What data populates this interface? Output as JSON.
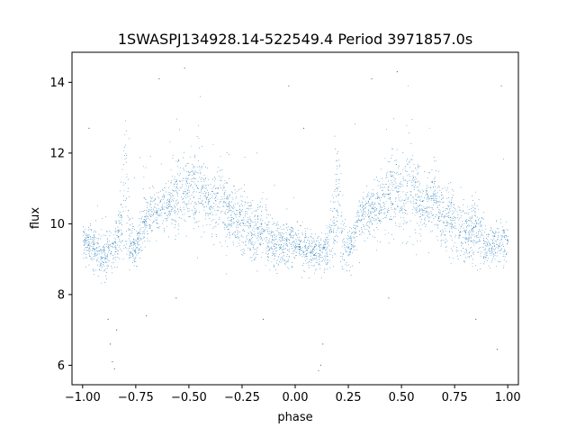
{
  "chart_data": {
    "type": "scatter",
    "title": "1SWASPJ134928.14-522549.4 Period 3971857.0s",
    "xlabel": "phase",
    "ylabel": "flux",
    "xlim": [
      -1.05,
      1.05
    ],
    "ylim": [
      5.45,
      14.85
    ],
    "xticks": [
      -1.0,
      -0.75,
      -0.5,
      -0.25,
      0.0,
      0.25,
      0.5,
      0.75,
      1.0
    ],
    "xtick_labels": [
      "−1.00",
      "−0.75",
      "−0.50",
      "−0.25",
      "0.00",
      "0.25",
      "0.50",
      "0.75",
      "1.00"
    ],
    "yticks": [
      6,
      8,
      10,
      12,
      14
    ],
    "ytick_labels": [
      "6",
      "8",
      "10",
      "12",
      "14"
    ],
    "grid": false,
    "marker_color": "#1f77b4",
    "series": [
      {
        "profile": [
          {
            "x": 0.0,
            "y": 9.5,
            "spread": 0.45
          },
          {
            "x": 0.05,
            "y": 9.3,
            "spread": 0.5
          },
          {
            "x": 0.1,
            "y": 9.1,
            "spread": 0.55
          },
          {
            "x": 0.15,
            "y": 9.3,
            "spread": 0.55
          },
          {
            "x": 0.18,
            "y": 10.0,
            "spread": 0.9
          },
          {
            "x": 0.2,
            "y": 11.0,
            "spread": 1.8
          },
          {
            "x": 0.22,
            "y": 9.5,
            "spread": 0.7
          },
          {
            "x": 0.25,
            "y": 9.3,
            "spread": 0.5
          },
          {
            "x": 0.3,
            "y": 10.2,
            "spread": 0.6
          },
          {
            "x": 0.35,
            "y": 10.4,
            "spread": 0.6
          },
          {
            "x": 0.4,
            "y": 10.5,
            "spread": 0.7
          },
          {
            "x": 0.45,
            "y": 10.9,
            "spread": 1.0
          },
          {
            "x": 0.5,
            "y": 10.8,
            "spread": 1.0
          },
          {
            "x": 0.55,
            "y": 11.0,
            "spread": 1.1
          },
          {
            "x": 0.6,
            "y": 10.4,
            "spread": 0.7
          },
          {
            "x": 0.65,
            "y": 10.8,
            "spread": 1.0
          },
          {
            "x": 0.7,
            "y": 10.1,
            "spread": 0.8
          },
          {
            "x": 0.75,
            "y": 10.0,
            "spread": 0.8
          },
          {
            "x": 0.8,
            "y": 9.7,
            "spread": 0.7
          },
          {
            "x": 0.85,
            "y": 9.8,
            "spread": 0.8
          },
          {
            "x": 0.9,
            "y": 9.4,
            "spread": 0.6
          },
          {
            "x": 0.95,
            "y": 9.4,
            "spread": 0.6
          },
          {
            "x": 1.0,
            "y": 9.5,
            "spread": 0.45
          }
        ],
        "points_per_unit_phase": 3800,
        "outliers": [
          {
            "x": -0.87,
            "y": 6.6
          },
          {
            "x": -0.86,
            "y": 6.1
          },
          {
            "x": -0.85,
            "y": 5.9
          },
          {
            "x": -0.88,
            "y": 7.3
          },
          {
            "x": -0.84,
            "y": 7.0
          },
          {
            "x": 0.12,
            "y": 6.0
          },
          {
            "x": 0.11,
            "y": 5.85
          },
          {
            "x": 0.13,
            "y": 6.6
          },
          {
            "x": 0.95,
            "y": 6.45
          },
          {
            "x": -0.7,
            "y": 7.4
          },
          {
            "x": -0.52,
            "y": 14.4
          },
          {
            "x": 0.48,
            "y": 14.3
          },
          {
            "x": -0.03,
            "y": 13.9
          },
          {
            "x": 0.97,
            "y": 13.9
          },
          {
            "x": 0.36,
            "y": 14.1
          },
          {
            "x": -0.64,
            "y": 14.1
          },
          {
            "x": -0.15,
            "y": 7.3
          },
          {
            "x": 0.85,
            "y": 7.3
          },
          {
            "x": -0.97,
            "y": 12.7
          },
          {
            "x": 0.04,
            "y": 12.7
          },
          {
            "x": -0.56,
            "y": 7.9
          },
          {
            "x": 0.44,
            "y": 7.9
          }
        ]
      }
    ]
  }
}
